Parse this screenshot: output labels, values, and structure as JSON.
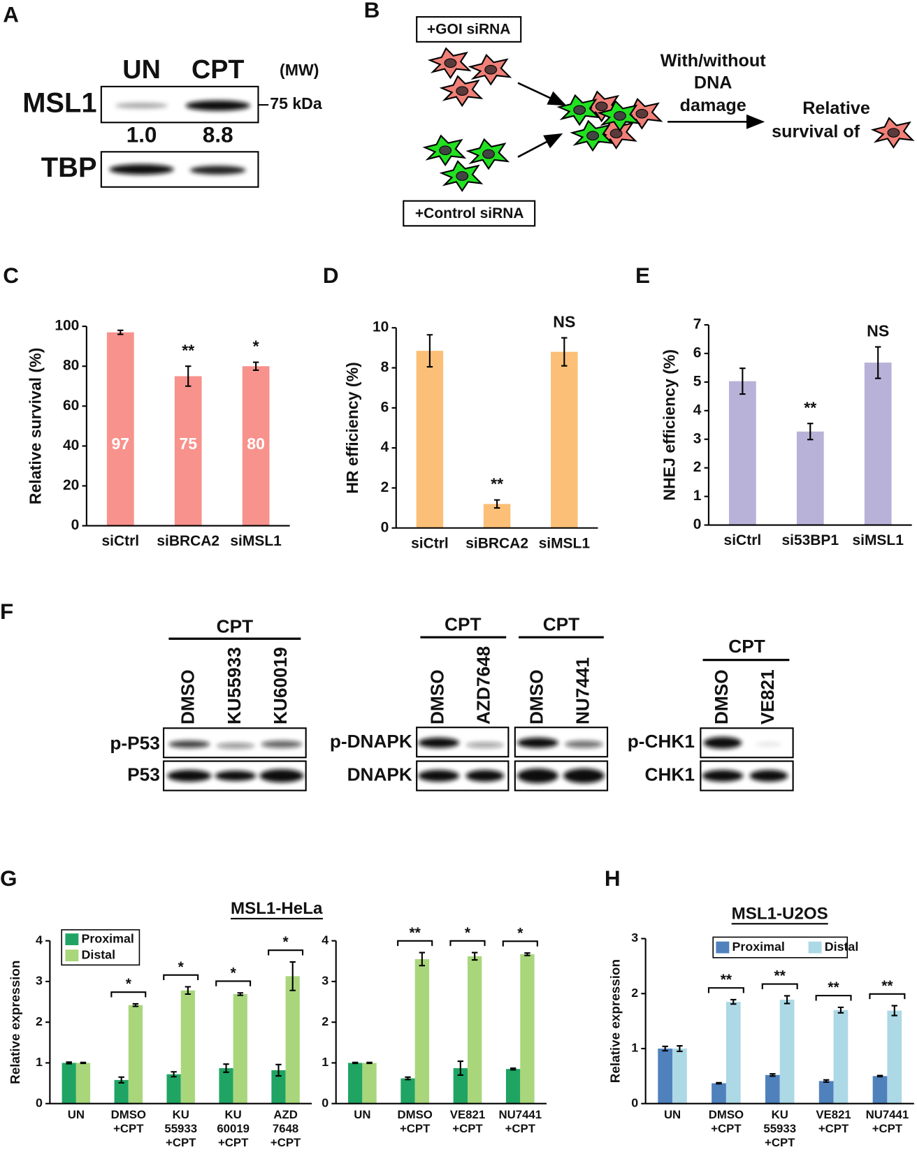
{
  "panel_labels": [
    "A",
    "B",
    "C",
    "D",
    "E",
    "F",
    "G",
    "H"
  ],
  "blot_a": {
    "lanes": [
      "UN",
      "CPT"
    ],
    "mw_header": "(MW)",
    "rows": [
      "MSL1",
      "TBP"
    ],
    "marker": "75 kDa",
    "quantification": [
      "1.0",
      "8.8"
    ]
  },
  "diagram_b": {
    "goi_label": "+GOI siRNA",
    "control_label": "+Control siRNA",
    "treatment_text": [
      "With/without",
      "DNA",
      "damage"
    ],
    "readout_text": [
      "Relative",
      "survival of"
    ]
  },
  "blot_f": {
    "treatment_labels": [
      "CPT",
      "CPT",
      "CPT",
      "CPT"
    ],
    "lanes": [
      "DMSO",
      "KU55933",
      "KU60019",
      "DMSO",
      "AZD7648",
      "DMSO",
      "NU7441",
      "DMSO",
      "VE821"
    ],
    "rows": [
      "p-P53",
      "P53",
      "p-DNAPK",
      "DNAPK",
      "p-CHK1",
      "CHK1"
    ]
  },
  "chart_data": [
    {
      "type": "bar",
      "ylabel": "Relative survival (%)",
      "categories": [
        "siCtrl",
        "siBRCA2",
        "siMSL1"
      ],
      "values": [
        97,
        75,
        80
      ],
      "errors": [
        1,
        5,
        2
      ],
      "annotations": [
        null,
        "**",
        "*"
      ],
      "show_value_labels": true,
      "color": "#f8928c",
      "ylim": [
        0,
        100
      ],
      "yticks": [
        0,
        20,
        40,
        60,
        80,
        100
      ]
    },
    {
      "type": "bar",
      "ylabel": "HR efficiency (%)",
      "categories": [
        "siCtrl",
        "siBRCA2",
        "siMSL1"
      ],
      "values": [
        8.85,
        1.2,
        8.8
      ],
      "errors": [
        0.8,
        0.2,
        0.7
      ],
      "annotations": [
        null,
        "**",
        "NS"
      ],
      "color": "#fbbf77",
      "ylim": [
        0,
        10
      ],
      "yticks": [
        0,
        2,
        4,
        6,
        8,
        10
      ]
    },
    {
      "type": "bar",
      "ylabel": "NHEJ efficiency (%)",
      "categories": [
        "siCtrl",
        "si53BP1",
        "siMSL1"
      ],
      "values": [
        5.03,
        3.27,
        5.68
      ],
      "errors": [
        0.45,
        0.28,
        0.55
      ],
      "annotations": [
        null,
        "**",
        "NS"
      ],
      "color": "#b8b2d9",
      "ylim": [
        0,
        7
      ],
      "yticks": [
        0,
        1,
        2,
        3,
        4,
        5,
        6,
        7
      ]
    },
    {
      "type": "bar",
      "title": "MSL1-HeLa",
      "ylabel": "Relative expression",
      "categories": [
        [
          "UN"
        ],
        [
          "DMSO",
          "+CPT"
        ],
        [
          "KU",
          "55933",
          "+CPT"
        ],
        [
          "KU",
          "60019",
          "+CPT"
        ],
        [
          "AZD",
          "7648",
          "+CPT"
        ]
      ],
      "series": [
        {
          "name": "Proximal",
          "color": "#1fa463",
          "values": [
            1.0,
            0.58,
            0.72,
            0.87,
            0.82
          ],
          "errors": [
            0.02,
            0.07,
            0.06,
            0.1,
            0.14
          ]
        },
        {
          "name": "Distal",
          "color": "#a9d67b",
          "values": [
            1.0,
            2.42,
            2.78,
            2.69,
            3.13
          ],
          "errors": [
            0.01,
            0.03,
            0.09,
            0.03,
            0.35
          ]
        }
      ],
      "annotations": [
        null,
        "*",
        "*",
        "*",
        "*"
      ],
      "legend": "upper left",
      "ylim": [
        0,
        4
      ],
      "yticks": [
        0,
        1,
        2,
        3,
        4
      ]
    },
    {
      "type": "bar",
      "categories": [
        [
          "UN"
        ],
        [
          "DMSO",
          "+CPT"
        ],
        [
          "VE821",
          "+CPT"
        ],
        [
          "NU7441",
          "+CPT"
        ]
      ],
      "series": [
        {
          "name": "Proximal",
          "color": "#1fa463",
          "values": [
            1.0,
            0.62,
            0.87,
            0.85
          ],
          "errors": [
            0.01,
            0.03,
            0.17,
            0.02
          ]
        },
        {
          "name": "Distal",
          "color": "#a9d67b",
          "values": [
            1.0,
            3.55,
            3.62,
            3.67
          ],
          "errors": [
            0.01,
            0.16,
            0.09,
            0.03
          ]
        }
      ],
      "annotations": [
        null,
        "**",
        "*",
        "*"
      ],
      "ylim": [
        0,
        4
      ],
      "yticks": [
        0,
        1,
        2,
        3,
        4
      ]
    },
    {
      "type": "bar",
      "title": "MSL1-U2OS",
      "ylabel": "Relative expression",
      "categories": [
        [
          "UN"
        ],
        [
          "DMSO",
          "+CPT"
        ],
        [
          "KU",
          "55933",
          "+CPT"
        ],
        [
          "VE821",
          "+CPT"
        ],
        [
          "NU7441",
          "+CPT"
        ]
      ],
      "series": [
        {
          "name": "Proximal",
          "color": "#4f81bd",
          "values": [
            1.0,
            0.37,
            0.52,
            0.41,
            0.5
          ],
          "errors": [
            0.04,
            0.01,
            0.02,
            0.02,
            0.01
          ]
        },
        {
          "name": "Distal",
          "color": "#add8e6",
          "values": [
            1.0,
            1.85,
            1.89,
            1.7,
            1.69
          ],
          "errors": [
            0.05,
            0.04,
            0.07,
            0.05,
            0.09
          ]
        }
      ],
      "annotations": [
        null,
        "**",
        "**",
        "**",
        "**"
      ],
      "legend": "upper center",
      "ylim": [
        0,
        3
      ],
      "yticks": [
        0,
        1,
        2,
        3
      ]
    }
  ]
}
